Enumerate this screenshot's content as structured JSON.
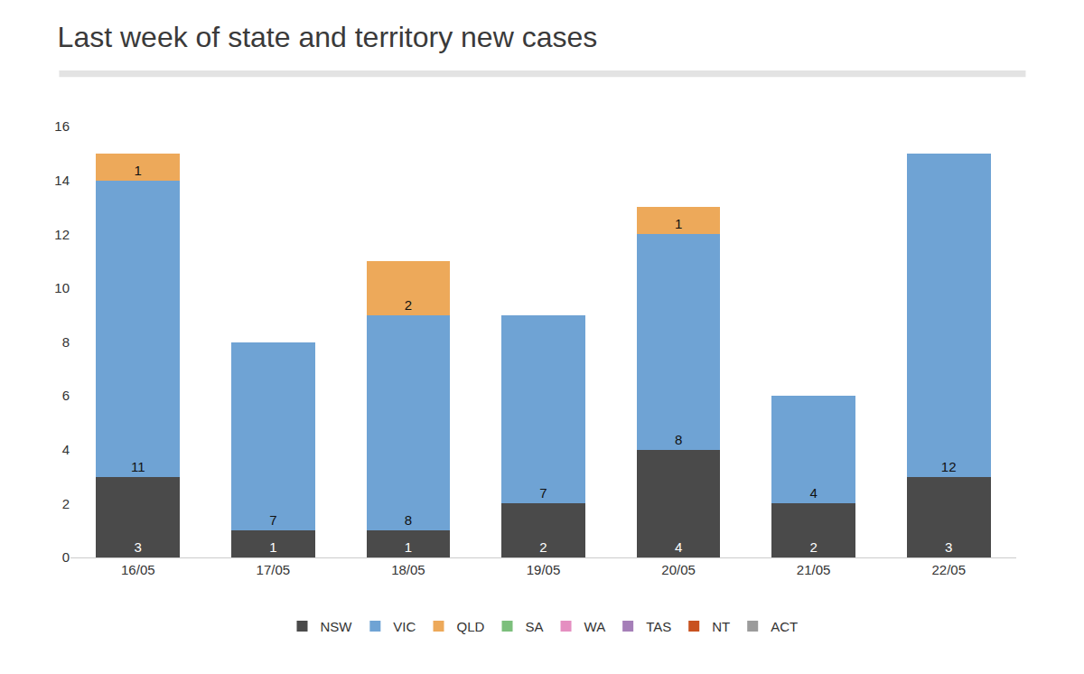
{
  "chart_data": {
    "type": "bar",
    "title": "Last week of state and territory new cases",
    "categories": [
      "16/05",
      "17/05",
      "18/05",
      "19/05",
      "20/05",
      "21/05",
      "22/05"
    ],
    "series": [
      {
        "name": "NSW",
        "color": "#4a4a4a",
        "values": [
          3,
          1,
          1,
          2,
          4,
          2,
          3
        ]
      },
      {
        "name": "VIC",
        "color": "#6fa3d4",
        "values": [
          11,
          7,
          8,
          7,
          8,
          4,
          12
        ]
      },
      {
        "name": "QLD",
        "color": "#eda95a",
        "values": [
          1,
          0,
          2,
          0,
          1,
          0,
          0
        ]
      },
      {
        "name": "SA",
        "color": "#7cbf7c",
        "values": [
          0,
          0,
          0,
          0,
          0,
          0,
          0
        ]
      },
      {
        "name": "WA",
        "color": "#e58fc1",
        "values": [
          0,
          0,
          0,
          0,
          0,
          0,
          0
        ]
      },
      {
        "name": "TAS",
        "color": "#a57fb8",
        "values": [
          0,
          0,
          0,
          0,
          0,
          0,
          0
        ]
      },
      {
        "name": "NT",
        "color": "#c8511f",
        "values": [
          0,
          0,
          0,
          0,
          0,
          0,
          0
        ]
      },
      {
        "name": "ACT",
        "color": "#9b9b9b",
        "values": [
          0,
          0,
          0,
          0,
          0,
          0,
          0
        ]
      }
    ],
    "stacked": true,
    "data_labels": true,
    "grid": false,
    "legend": "bottom",
    "ylim": [
      0,
      16
    ],
    "yticks": [
      0,
      2,
      4,
      6,
      8,
      10,
      12,
      14,
      16
    ]
  }
}
